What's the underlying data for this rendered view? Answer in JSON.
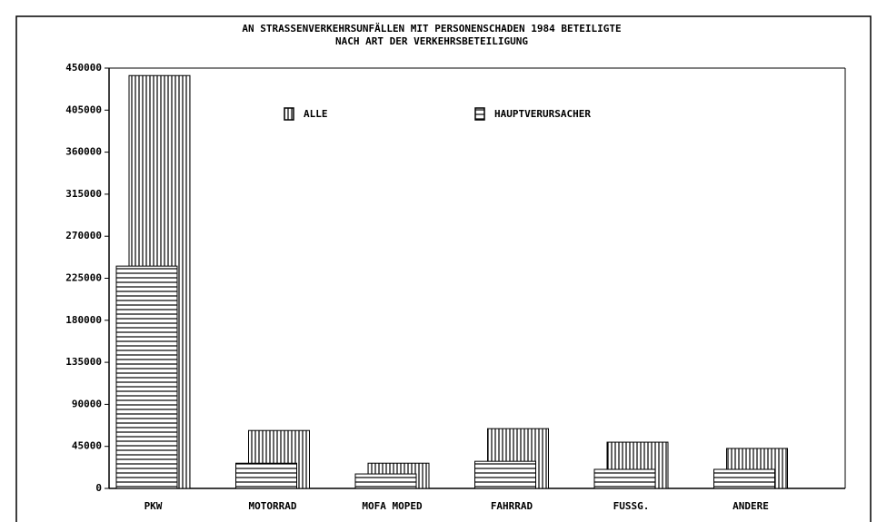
{
  "chart_data": {
    "type": "bar",
    "title": "AN STRASSENVERKEHRSUNFÄLLEN MIT PERSONENSCHADEN 1984 BETEILIGTE",
    "subtitle": "NACH ART DER VERKEHRSBETEILIGUNG",
    "categories": [
      "PKW",
      "MOTORRAD",
      "MOFA MOPED",
      "FAHRRAD",
      "FUSSG.",
      "ANDERE"
    ],
    "series": [
      {
        "name": "ALLE",
        "color": "#000000",
        "values": [
          442000,
          62000,
          27000,
          64000,
          49500,
          42800
        ]
      },
      {
        "name": "HAUPTVERURSACHER",
        "color": "#000000",
        "values": [
          238000,
          27000,
          15500,
          29000,
          20400,
          20400
        ]
      }
    ],
    "ylim": [
      0,
      450000
    ],
    "yticks": [
      0,
      45000,
      90000,
      135000,
      180000,
      225000,
      270000,
      315000,
      360000,
      405000,
      450000
    ]
  }
}
